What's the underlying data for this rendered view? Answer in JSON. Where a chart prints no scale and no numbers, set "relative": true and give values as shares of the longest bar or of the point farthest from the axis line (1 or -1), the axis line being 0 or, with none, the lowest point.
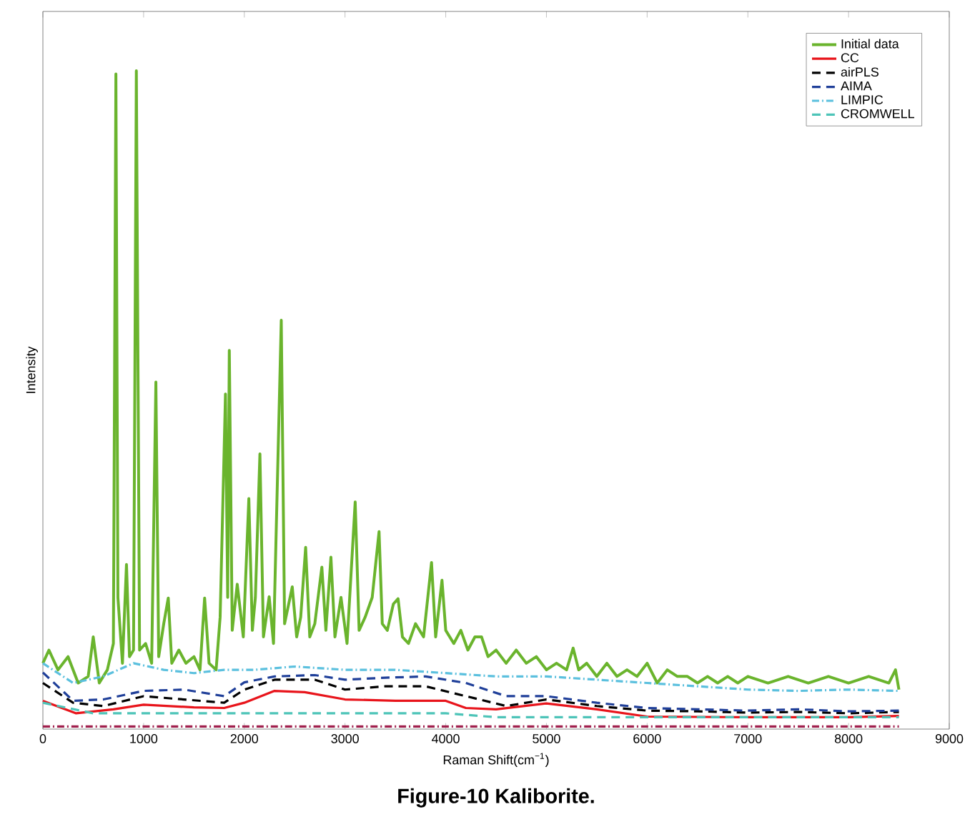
{
  "chart_data": {
    "type": "line",
    "relative": true,
    "xlabel": "Raman Shift(cm$^{−1}$)",
    "ylabel": "Intensity",
    "xlim": [
      0,
      9000
    ],
    "xticks": [
      0,
      1000,
      2000,
      3000,
      4000,
      5000,
      6000,
      7000,
      8000,
      9000
    ],
    "legend": "top right",
    "annotations": [
      "Figure-10 Kaliborite."
    ],
    "series": [
      {
        "name": "Initial data",
        "color": "#6ab42d",
        "line_style": "solid",
        "x": [
          0,
          60,
          150,
          250,
          350,
          450,
          500,
          560,
          640,
          700,
          725,
          745,
          790,
          830,
          860,
          900,
          928,
          960,
          1020,
          1080,
          1122,
          1150,
          1200,
          1245,
          1280,
          1350,
          1420,
          1500,
          1560,
          1606,
          1650,
          1720,
          1760,
          1813,
          1835,
          1851,
          1880,
          1930,
          1990,
          2045,
          2080,
          2110,
          2155,
          2190,
          2247,
          2290,
          2367,
          2400,
          2476,
          2520,
          2560,
          2609,
          2650,
          2700,
          2770,
          2810,
          2860,
          2900,
          2960,
          3020,
          3101,
          3140,
          3200,
          3270,
          3338,
          3370,
          3420,
          3480,
          3527,
          3570,
          3630,
          3700,
          3780,
          3859,
          3900,
          3963,
          4000,
          4080,
          4150,
          4220,
          4290,
          4356,
          4420,
          4500,
          4600,
          4700,
          4800,
          4900,
          5000,
          5100,
          5200,
          5265,
          5320,
          5400,
          5500,
          5600,
          5700,
          5800,
          5900,
          6000,
          6100,
          6200,
          6300,
          6400,
          6500,
          6600,
          6700,
          6800,
          6900,
          7000,
          7200,
          7400,
          7600,
          7800,
          8000,
          8200,
          8400,
          8466,
          8500
        ],
        "values": [
          0.1,
          0.12,
          0.09,
          0.11,
          0.07,
          0.08,
          0.14,
          0.07,
          0.09,
          0.13,
          0.995,
          0.2,
          0.1,
          0.25,
          0.11,
          0.12,
          1.0,
          0.12,
          0.13,
          0.1,
          0.527,
          0.11,
          0.16,
          0.199,
          0.1,
          0.12,
          0.1,
          0.11,
          0.09,
          0.199,
          0.1,
          0.09,
          0.17,
          0.509,
          0.2,
          0.575,
          0.15,
          0.22,
          0.14,
          0.35,
          0.15,
          0.2,
          0.418,
          0.14,
          0.201,
          0.13,
          0.621,
          0.16,
          0.216,
          0.14,
          0.17,
          0.276,
          0.14,
          0.16,
          0.246,
          0.15,
          0.261,
          0.14,
          0.2,
          0.13,
          0.345,
          0.15,
          0.17,
          0.2,
          0.3,
          0.16,
          0.15,
          0.19,
          0.198,
          0.14,
          0.13,
          0.16,
          0.14,
          0.253,
          0.14,
          0.226,
          0.15,
          0.13,
          0.15,
          0.12,
          0.14,
          0.14,
          0.11,
          0.12,
          0.1,
          0.12,
          0.1,
          0.11,
          0.09,
          0.1,
          0.09,
          0.123,
          0.09,
          0.1,
          0.08,
          0.1,
          0.08,
          0.09,
          0.08,
          0.1,
          0.07,
          0.09,
          0.08,
          0.08,
          0.07,
          0.08,
          0.07,
          0.08,
          0.07,
          0.08,
          0.07,
          0.08,
          0.07,
          0.08,
          0.07,
          0.08,
          0.07,
          0.09,
          0.06
        ]
      },
      {
        "name": "CC",
        "color": "#e8141b",
        "line_style": "solid",
        "x": [
          0,
          330,
          700,
          1000,
          1500,
          1800,
          2000,
          2300,
          2600,
          3000,
          3500,
          4000,
          4200,
          4500,
          5000,
          5500,
          6000,
          7000,
          8000,
          8500
        ],
        "values": [
          0.043,
          0.024,
          0.03,
          0.037,
          0.033,
          0.032,
          0.04,
          0.058,
          0.056,
          0.045,
          0.043,
          0.043,
          0.032,
          0.03,
          0.039,
          0.03,
          0.019,
          0.018,
          0.018,
          0.02
        ]
      },
      {
        "name": "airPLS",
        "color": "#000000",
        "line_style": "dashed",
        "x": [
          0,
          300,
          600,
          1000,
          1400,
          1800,
          2000,
          2300,
          2700,
          3000,
          3400,
          3800,
          4200,
          4600,
          5000,
          5500,
          6000,
          6500,
          7000,
          7500,
          8000,
          8500
        ],
        "values": [
          0.07,
          0.04,
          0.035,
          0.05,
          0.045,
          0.04,
          0.06,
          0.075,
          0.075,
          0.06,
          0.065,
          0.065,
          0.05,
          0.035,
          0.045,
          0.035,
          0.028,
          0.027,
          0.025,
          0.026,
          0.024,
          0.026
        ]
      },
      {
        "name": "AIMA",
        "color": "#1f3f99",
        "line_style": "dashed",
        "x": [
          0,
          300,
          600,
          1000,
          1400,
          1800,
          2000,
          2300,
          2700,
          3000,
          3400,
          3800,
          4200,
          4600,
          5000,
          5500,
          6000,
          6500,
          7000,
          7500,
          8000,
          8500
        ],
        "values": [
          0.086,
          0.043,
          0.045,
          0.058,
          0.06,
          0.05,
          0.071,
          0.08,
          0.082,
          0.075,
          0.078,
          0.08,
          0.07,
          0.05,
          0.05,
          0.04,
          0.032,
          0.03,
          0.028,
          0.03,
          0.027,
          0.028
        ]
      },
      {
        "color": "#a0204d",
        "line_style": "dashdot",
        "x": [
          0,
          8500
        ],
        "values": [
          0.004,
          0.004
        ]
      },
      {
        "name": "LIMPIC",
        "color": "#5bc0de",
        "line_style": "dashdot",
        "x": [
          0,
          300,
          600,
          900,
          1200,
          1500,
          1800,
          2100,
          2500,
          3000,
          3500,
          4000,
          4500,
          5000,
          5500,
          6000,
          6500,
          7000,
          7500,
          8000,
          8500
        ],
        "values": [
          0.1,
          0.07,
          0.08,
          0.1,
          0.09,
          0.085,
          0.09,
          0.09,
          0.095,
          0.09,
          0.09,
          0.085,
          0.08,
          0.08,
          0.075,
          0.07,
          0.065,
          0.06,
          0.058,
          0.06,
          0.058
        ]
      },
      {
        "name": "CROMWELL",
        "color": "#4dc4b8",
        "line_style": "dashed",
        "x": [
          0,
          500,
          4000,
          4500,
          8500
        ],
        "values": [
          0.04,
          0.024,
          0.024,
          0.018,
          0.018
        ]
      }
    ]
  }
}
